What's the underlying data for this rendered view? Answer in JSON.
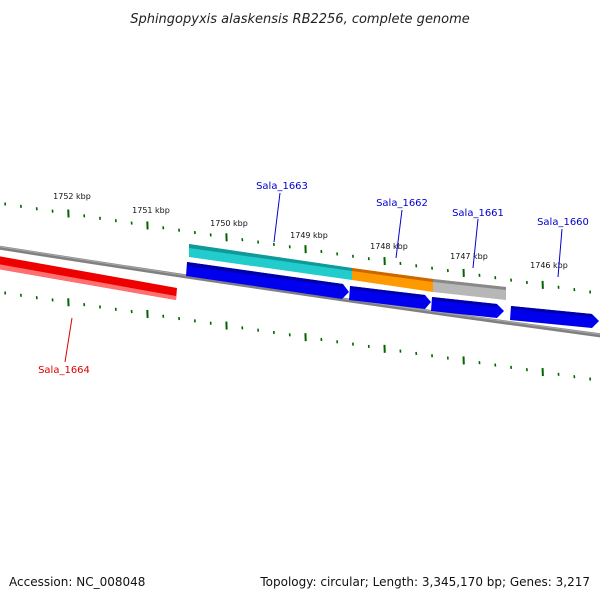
{
  "title": "Sphingopyxis alaskensis RB2256, complete genome",
  "ruler_ticks": [
    "1752 kbp",
    "1751 kbp",
    "1750 kbp",
    "1749 kbp",
    "1748 kbp",
    "1747 kbp",
    "1746 kbp"
  ],
  "genes": [
    {
      "name": "Sala_1663",
      "color": "#0000cc"
    },
    {
      "name": "Sala_1662",
      "color": "#0000cc"
    },
    {
      "name": "Sala_1661",
      "color": "#0000cc"
    },
    {
      "name": "Sala_1660",
      "color": "#0000cc"
    },
    {
      "name": "Sala_1664",
      "color": "#dd0000"
    }
  ],
  "colors": {
    "backbone": "#808080",
    "forward_gene": "#0000ee",
    "reverse_gene": "#ee0000",
    "cog_cyan": "#22cccc",
    "cog_orange": "#ff9900",
    "cog_gray": "#b0b0b0",
    "tick_green": "#006400"
  },
  "footer": {
    "accession": "Accession: NC_008048",
    "topology": "Topology: circular; Length: 3,345,170 bp; Genes: 3,217"
  }
}
